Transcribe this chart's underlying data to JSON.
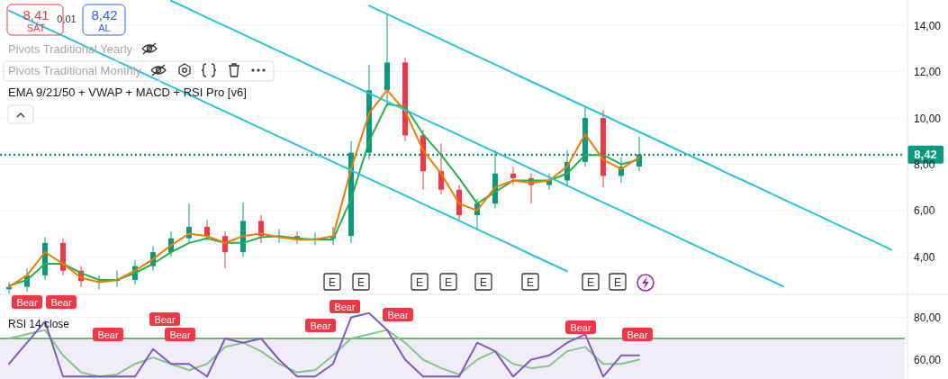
{
  "chart_data": [
    {
      "type": "candlestick",
      "categories": [
        null,
        null,
        null,
        null,
        null,
        null,
        null,
        null,
        null,
        null,
        null,
        null,
        null,
        null,
        null,
        null,
        null,
        null,
        null,
        null,
        null,
        null,
        null,
        null,
        null,
        null,
        null,
        null,
        null,
        null,
        null,
        null,
        null,
        null,
        null,
        null,
        null,
        null,
        null,
        null,
        null,
        null,
        null,
        null,
        null,
        null,
        null,
        null,
        null,
        null
      ],
      "ohlc": [
        [
          2.6,
          2.9,
          2.4,
          2.7
        ],
        [
          2.7,
          3.5,
          2.5,
          3.2
        ],
        [
          3.2,
          4.85,
          3.0,
          4.6
        ],
        [
          4.6,
          4.8,
          3.2,
          3.4
        ],
        [
          3.4,
          3.6,
          2.7,
          2.95
        ],
        [
          2.95,
          3.2,
          2.6,
          2.95
        ],
        [
          2.95,
          3.4,
          2.7,
          3.0
        ],
        [
          3.0,
          3.85,
          2.8,
          3.6
        ],
        [
          3.6,
          4.45,
          3.4,
          4.2
        ],
        [
          4.2,
          5.1,
          4.0,
          4.8
        ],
        [
          4.8,
          6.3,
          4.6,
          5.3
        ],
        [
          5.3,
          5.6,
          4.7,
          4.9
        ],
        [
          4.9,
          5.1,
          3.5,
          4.2
        ],
        [
          4.2,
          6.35,
          4.0,
          5.55
        ],
        [
          5.55,
          5.8,
          4.6,
          4.9
        ],
        [
          4.9,
          5.2,
          4.6,
          4.9
        ],
        [
          4.9,
          5.1,
          4.55,
          4.8
        ],
        [
          4.8,
          5.05,
          4.5,
          4.8
        ],
        [
          4.8,
          5.3,
          4.5,
          4.9
        ],
        [
          4.9,
          9.0,
          4.6,
          8.5
        ],
        [
          8.5,
          12.3,
          8.2,
          11.2
        ],
        [
          11.2,
          14.5,
          10.5,
          12.4
        ],
        [
          12.4,
          12.6,
          9.0,
          9.25
        ],
        [
          9.25,
          9.5,
          6.9,
          7.7
        ],
        [
          7.7,
          8.9,
          6.7,
          6.9
        ],
        [
          6.9,
          7.1,
          5.6,
          5.8
        ],
        [
          5.8,
          6.5,
          5.2,
          6.3
        ],
        [
          6.3,
          8.6,
          6.1,
          7.6
        ],
        [
          7.6,
          7.9,
          7.1,
          7.4
        ],
        [
          7.4,
          7.6,
          6.3,
          7.1
        ],
        [
          7.1,
          7.6,
          6.9,
          7.3
        ],
        [
          7.3,
          8.6,
          7.1,
          8.1
        ],
        [
          8.1,
          10.5,
          7.9,
          10.0
        ],
        [
          10.0,
          10.35,
          7.0,
          7.5
        ],
        [
          7.5,
          8.3,
          7.2,
          7.9
        ],
        [
          7.9,
          9.2,
          7.7,
          8.42
        ],
        null,
        null,
        null,
        null,
        null,
        null,
        null,
        null,
        null,
        null,
        null,
        null,
        null,
        null
      ],
      "colors": [
        "#089981",
        "#089981",
        "#089981",
        "#f23645",
        "#f23645",
        "#089981",
        "#089981",
        "#089981",
        "#089981",
        "#089981",
        "#089981",
        "#f23645",
        "#f23645",
        "#089981",
        "#f23645",
        "#089981",
        "#f23645",
        "#089981",
        "#089981",
        "#089981",
        "#089981",
        "#089981",
        "#f23645",
        "#f23645",
        "#f23645",
        "#f23645",
        "#089981",
        "#089981",
        "#f23645",
        "#f23645",
        "#089981",
        "#089981",
        "#089981",
        "#f23645",
        "#089981",
        "#089981",
        null,
        null,
        null,
        null,
        null,
        null,
        null,
        null,
        null,
        null,
        null,
        null,
        null,
        null
      ],
      "series": [
        {
          "type": "line",
          "color": "#22b14c",
          "values": [
            2.75,
            3.0,
            3.7,
            3.7,
            3.3,
            3.0,
            3.0,
            3.3,
            3.7,
            4.2,
            4.6,
            4.8,
            4.6,
            4.6,
            4.85,
            4.9,
            4.8,
            4.75,
            4.75,
            6.5,
            9.0,
            10.6,
            10.5,
            9.3,
            8.4,
            7.4,
            6.3,
            6.8,
            7.3,
            7.3,
            7.3,
            7.6,
            8.4,
            8.4,
            8.0,
            8.2,
            null,
            null,
            null,
            null,
            null,
            null,
            null,
            null,
            null,
            null,
            null,
            null,
            null,
            null
          ]
        },
        {
          "type": "line",
          "color": "#f57c00",
          "values": [
            2.7,
            3.2,
            4.2,
            3.7,
            3.1,
            2.9,
            3.0,
            3.4,
            3.9,
            4.5,
            5.0,
            4.9,
            4.6,
            4.9,
            5.0,
            4.85,
            4.75,
            4.75,
            4.9,
            7.8,
            10.2,
            11.2,
            10.3,
            8.6,
            7.6,
            6.3,
            6.0,
            7.0,
            7.3,
            7.2,
            7.3,
            7.9,
            9.3,
            8.2,
            7.8,
            8.3,
            null,
            null,
            null,
            null,
            null,
            null,
            null,
            null,
            null,
            null,
            null,
            null,
            null,
            null
          ]
        },
        {
          "type": "line",
          "color": "#26c6da",
          "values": [
            null,
            null,
            null,
            null,
            null,
            null,
            null,
            null,
            null,
            null,
            null,
            null,
            null,
            null,
            null,
            null,
            null,
            null,
            null,
            null,
            14.85,
            14.49,
            14.12,
            13.76,
            13.4,
            13.03,
            12.67,
            12.31,
            11.94,
            11.58,
            11.22,
            10.85,
            10.49,
            10.13,
            9.76,
            9.4,
            9.04,
            8.67,
            8.31,
            7.95,
            7.58,
            7.22,
            6.86,
            6.49,
            6.13,
            5.77,
            5.4,
            5.04,
            4.68,
            4.31
          ]
        },
        {
          "type": "line",
          "color": "#26c6da",
          "values": [
            null,
            null,
            null,
            null,
            null,
            null,
            null,
            null,
            null,
            15.07,
            14.71,
            14.34,
            13.98,
            13.62,
            13.25,
            12.89,
            12.53,
            12.16,
            11.8,
            11.44,
            11.07,
            10.71,
            10.35,
            9.98,
            9.62,
            9.26,
            8.89,
            8.53,
            8.17,
            7.8,
            7.44,
            7.08,
            6.71,
            6.35,
            5.99,
            5.62,
            5.26,
            4.9,
            4.53,
            4.17,
            3.81,
            3.44,
            3.08,
            2.72,
            null,
            null,
            null,
            null,
            null,
            null
          ]
        },
        {
          "type": "line",
          "color": "#26c6da",
          "values": [
            14.64,
            14.28,
            13.91,
            13.55,
            13.19,
            12.82,
            12.46,
            12.1,
            11.73,
            11.37,
            11.01,
            10.64,
            10.28,
            9.92,
            9.55,
            9.19,
            8.83,
            8.46,
            8.1,
            7.74,
            7.37,
            7.01,
            6.65,
            6.28,
            5.92,
            5.56,
            5.19,
            4.83,
            4.47,
            4.1,
            3.74,
            3.38,
            null,
            null,
            null,
            null,
            null,
            null,
            null,
            null,
            null,
            null,
            null,
            null,
            null,
            null,
            null,
            null,
            null,
            null
          ]
        }
      ],
      "ylim": [
        2.35,
        15.1
      ],
      "yticks": [
        {
          "value": 4,
          "label": "4,00"
        },
        {
          "value": 6,
          "label": "6,00"
        },
        {
          "value": 8,
          "label": "8,00"
        },
        {
          "value": 10,
          "label": "10,00"
        },
        {
          "value": 12,
          "label": "12,00"
        },
        {
          "value": 14,
          "label": "14,00"
        }
      ],
      "tick_labels": "y",
      "grid": "y",
      "ref_lines": [
        {
          "axis": "y",
          "value": 8.41,
          "label": null,
          "color": "#555555",
          "line_style": "dotted"
        },
        {
          "axis": "y",
          "value": 8.42,
          "label": "8,42",
          "color": "#089981",
          "line_style": "dotted"
        }
      ],
      "annotations": [
        "8,41",
        "SAT",
        "0,01",
        "8,42",
        "AL",
        "Pivots Traditional Yearly",
        "Pivots Traditional Monthly",
        "EMA 9/21/50 + VWAP + MACD + RSI Pro [v6]",
        "E",
        "E",
        "E",
        "E",
        "E",
        "E",
        "E",
        "E"
      ]
    },
    {
      "type": "line",
      "categories": [
        null,
        null,
        null,
        null,
        null,
        null,
        null,
        null,
        null,
        null,
        null,
        null,
        null,
        null,
        null,
        null,
        null,
        null,
        null,
        null,
        null,
        null,
        null,
        null,
        null,
        null,
        null,
        null,
        null,
        null,
        null,
        null,
        null,
        null,
        null,
        null,
        null,
        null,
        null,
        null,
        null,
        null,
        null,
        null,
        null,
        null,
        null,
        null,
        null,
        null
      ],
      "series": [
        {
          "color": "#81c784",
          "values": [
            70,
            72,
            74,
            62,
            54,
            52,
            53,
            58,
            61,
            58,
            55,
            58,
            66,
            68,
            64,
            58,
            54,
            55,
            62,
            70,
            72,
            74,
            68,
            60,
            56,
            53,
            60,
            64,
            58,
            56,
            57,
            64,
            66,
            58,
            58,
            60,
            null,
            null,
            null,
            null,
            null,
            null,
            null,
            null,
            null,
            null,
            null,
            null,
            null,
            null
          ]
        },
        {
          "color": "#7e57c2",
          "values": [
            58,
            68,
            78,
            52,
            52,
            52,
            52,
            52,
            65,
            58,
            58,
            52,
            70,
            68,
            70,
            60,
            52,
            52,
            58,
            80,
            82,
            74,
            60,
            52,
            52,
            52,
            68,
            64,
            52,
            60,
            62,
            68,
            72,
            52,
            62,
            62,
            null,
            null,
            null,
            null,
            null,
            null,
            null,
            null,
            null,
            null,
            null,
            null,
            null,
            null
          ]
        }
      ],
      "ylim": [
        50,
        90
      ],
      "yticks": [
        {
          "value": 60,
          "label": "60,00"
        },
        {
          "value": 80,
          "label": "80,00"
        }
      ],
      "tick_labels": "y",
      "grid": "y",
      "ref_lines": [
        {
          "axis": "y",
          "value": 70,
          "label": null,
          "color": "#43a047",
          "line_style": "solid"
        }
      ],
      "bands": [
        {
          "axis": "y",
          "from": 50,
          "to": 70,
          "label": null,
          "color": "#f0ecfa"
        }
      ],
      "annotations": [
        "RSI 14 close",
        "Bear",
        "Bear",
        "Bear",
        "Bear",
        "Bear",
        "Bear",
        "Bear",
        "Bear",
        "Bear",
        "Bear"
      ]
    }
  ]
}
